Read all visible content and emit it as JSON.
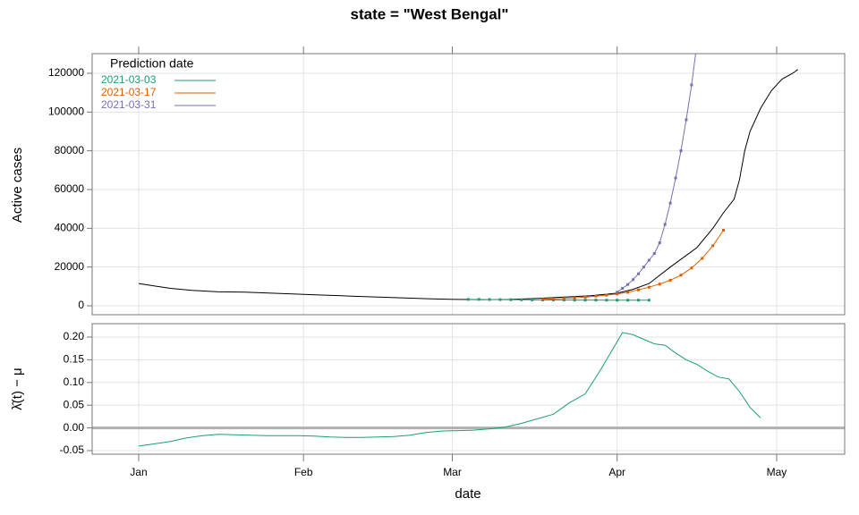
{
  "chart_data": [
    {
      "type": "line",
      "title": "state = \"West Bengal\"",
      "ylabel": "Active cases",
      "legend_title": "Prediction date",
      "legend": "top-left",
      "grid": true,
      "xlim": [
        -8.75,
        132.8
      ],
      "xticks": [
        {
          "value": 0,
          "label": "Jan"
        },
        {
          "value": 31,
          "label": "Feb"
        },
        {
          "value": 59,
          "label": "Mar"
        },
        {
          "value": 90,
          "label": "Apr"
        },
        {
          "value": 120,
          "label": "May"
        }
      ],
      "ylim": [
        -4615,
        130150
      ],
      "yticks": [
        0,
        20000,
        40000,
        60000,
        80000,
        100000,
        120000
      ],
      "series": [
        {
          "color": "#000000",
          "markers": false,
          "x": [
            0,
            3,
            6,
            10,
            15,
            20,
            25,
            30,
            35,
            40,
            45,
            50,
            55,
            60,
            65,
            70,
            75,
            80,
            85,
            90,
            93,
            96,
            100,
            103,
            105,
            108,
            110,
            112,
            113,
            114,
            115,
            117,
            119,
            121,
            123,
            124
          ],
          "values": [
            11500,
            10200,
            9000,
            8000,
            7200,
            7000,
            6500,
            6000,
            5500,
            5000,
            4500,
            4000,
            3600,
            3300,
            3200,
            3300,
            3800,
            4500,
            5200,
            6500,
            8500,
            11500,
            20000,
            26000,
            30000,
            40000,
            48000,
            55000,
            65000,
            80000,
            90000,
            102000,
            111000,
            117000,
            120000,
            122000
          ]
        },
        {
          "name": "2021-03-03",
          "color": "#1b9e77",
          "markers": true,
          "x": [
            62,
            64,
            66,
            68,
            70,
            72,
            74,
            76,
            78,
            80,
            82,
            84,
            86,
            88,
            90,
            92,
            94,
            96
          ],
          "values": [
            3300,
            3300,
            3250,
            3200,
            3150,
            3100,
            3050,
            3000,
            3000,
            3000,
            2950,
            2950,
            2950,
            2900,
            2900,
            2900,
            2900,
            2900
          ]
        },
        {
          "name": "2021-03-17",
          "color": "#d95f02",
          "markers": true,
          "x": [
            76,
            78,
            80,
            82,
            84,
            86,
            88,
            90,
            92,
            94,
            96,
            98,
            100,
            102,
            104,
            106,
            108,
            110
          ],
          "values": [
            3300,
            3500,
            3800,
            4100,
            4500,
            5000,
            5500,
            6100,
            7000,
            8200,
            9600,
            11200,
            13200,
            15800,
            19500,
            24500,
            31000,
            39000
          ]
        },
        {
          "name": "2021-03-31",
          "color": "#7570b3",
          "markers": true,
          "x": [
            90,
            91,
            92,
            93,
            94,
            95,
            96,
            97,
            98,
            99,
            100,
            101,
            102,
            103,
            104,
            105
          ],
          "values": [
            7000,
            9000,
            11000,
            13500,
            16500,
            20000,
            23500,
            27000,
            32500,
            42000,
            53000,
            66000,
            80000,
            96000,
            114000,
            135000
          ]
        }
      ]
    },
    {
      "type": "line",
      "xlabel": "date",
      "ylabel": "λ̂(t) − μ",
      "grid": true,
      "hline": 0,
      "xlim": [
        -8.75,
        132.8
      ],
      "xticks": [
        {
          "value": 0,
          "label": "Jan"
        },
        {
          "value": 31,
          "label": "Feb"
        },
        {
          "value": 59,
          "label": "Mar"
        },
        {
          "value": 90,
          "label": "Apr"
        },
        {
          "value": 120,
          "label": "May"
        }
      ],
      "ylim": [
        -0.0579,
        0.2295
      ],
      "yticks": [
        -0.05,
        {
          "value": 0,
          "label": "0.00"
        },
        {
          "value": 0.05,
          "label": "0.05"
        },
        {
          "value": 0.1,
          "label": "0.10"
        },
        {
          "value": 0.15,
          "label": "0.15"
        },
        {
          "value": 0.2,
          "label": "0.20"
        }
      ],
      "series": [
        {
          "color": "#1b9e77",
          "x": [
            0,
            3,
            6,
            9,
            12,
            15,
            18,
            21,
            24,
            27,
            30,
            33,
            36,
            39,
            42,
            45,
            48,
            51,
            54,
            57,
            60,
            63,
            66,
            69,
            72,
            75,
            78,
            81,
            84,
            87,
            89,
            91,
            93,
            95,
            97,
            99,
            101,
            103,
            105,
            107,
            109,
            111,
            113,
            115,
            117
          ],
          "values": [
            -0.04,
            -0.035,
            -0.03,
            -0.022,
            -0.017,
            -0.014,
            -0.015,
            -0.016,
            -0.017,
            -0.017,
            -0.017,
            -0.018,
            -0.02,
            -0.021,
            -0.021,
            -0.02,
            -0.019,
            -0.016,
            -0.01,
            -0.007,
            -0.006,
            -0.005,
            -0.002,
            0.002,
            0.01,
            0.02,
            0.03,
            0.055,
            0.075,
            0.13,
            0.17,
            0.21,
            0.205,
            0.195,
            0.185,
            0.182,
            0.165,
            0.15,
            0.14,
            0.125,
            0.112,
            0.108,
            0.08,
            0.045,
            0.022
          ]
        }
      ]
    }
  ]
}
